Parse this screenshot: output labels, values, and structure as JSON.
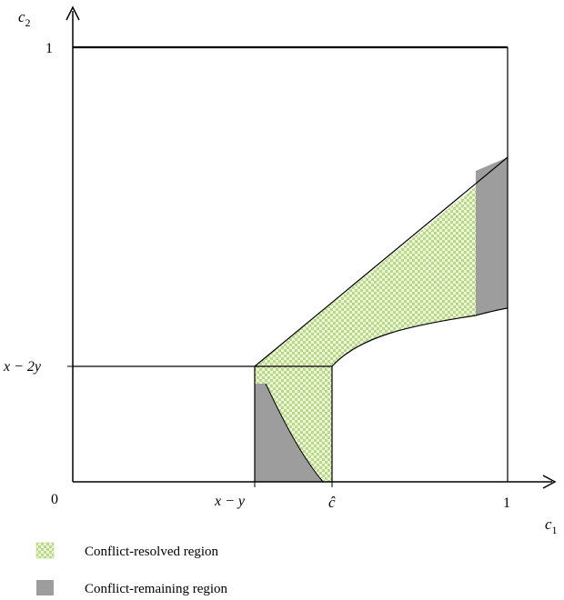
{
  "axes": {
    "x_label": "c",
    "x_label_sub": "1",
    "y_label": "c",
    "y_label_sub": "2"
  },
  "ticks": {
    "origin": "0",
    "x_one": "1",
    "y_one": "1",
    "x_mid_left": "x − y",
    "x_mid_right": "ĉ",
    "y_mid": "x − 2y"
  },
  "legend": [
    {
      "label": "Conflict-resolved region",
      "pattern": "checker"
    },
    {
      "label": "Conflict-remaining region",
      "pattern": "solid"
    }
  ],
  "colors": {
    "resolved_light": "#eef6d8",
    "resolved_dark": "#b9d98a",
    "remaining": "#9d9d9d",
    "line": "#000000"
  }
}
